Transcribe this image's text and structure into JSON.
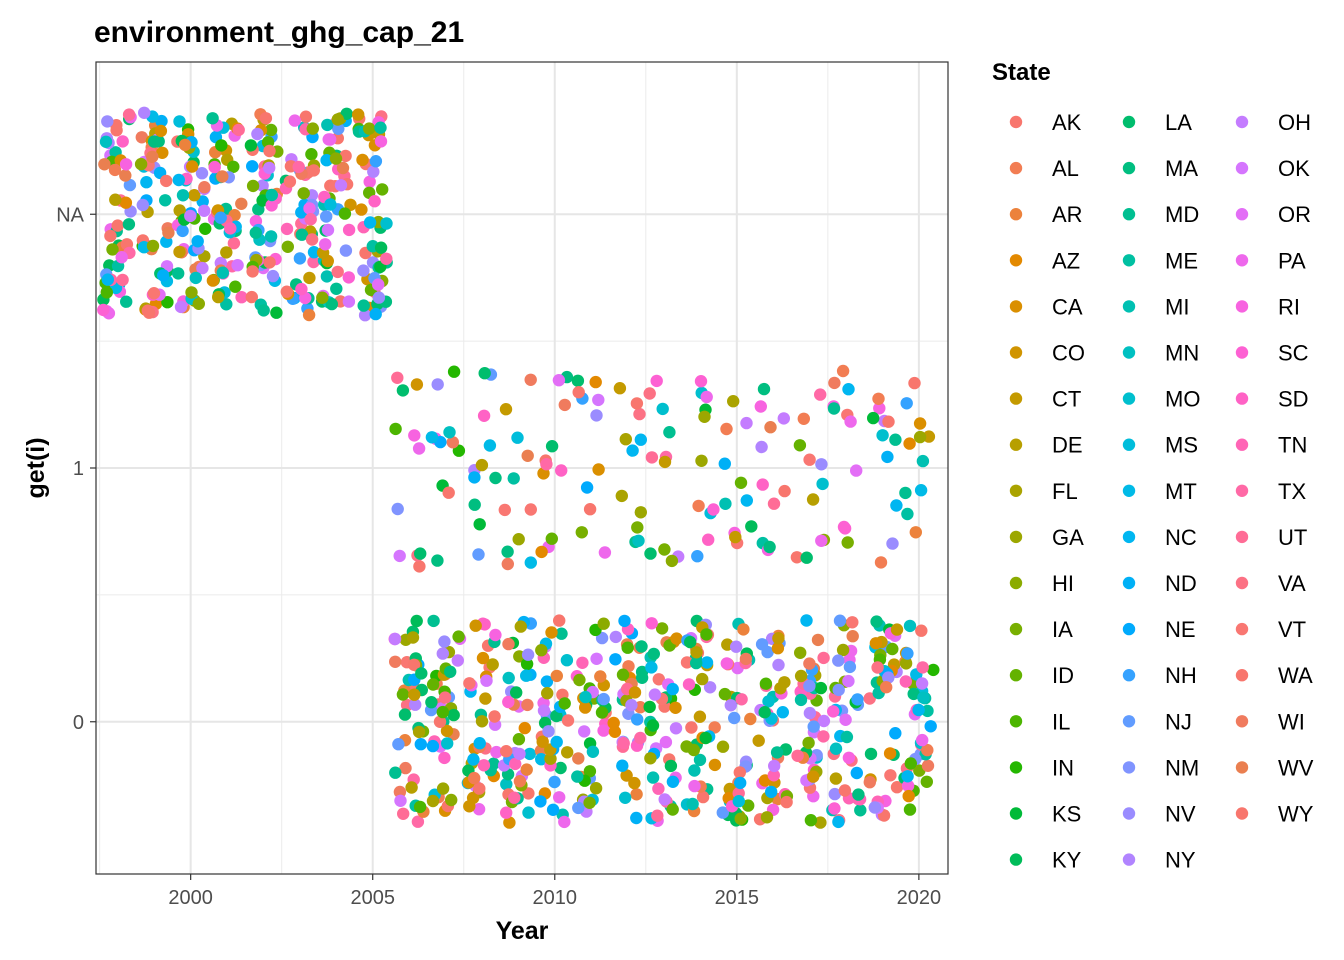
{
  "chart_data": {
    "type": "scatter",
    "title": "environment_ghg_cap_21",
    "xlabel": "Year",
    "ylabel": "get(i)",
    "xlim": [
      1997.4,
      2020.8
    ],
    "ylim": [
      -0.6,
      2.6
    ],
    "x_ticks": [
      2000,
      2005,
      2010,
      2015,
      2020
    ],
    "x_tick_labels": [
      "2000",
      "2005",
      "2010",
      "2015",
      "2020"
    ],
    "y_ticks": [
      0,
      1,
      2
    ],
    "y_tick_labels": [
      "0",
      "1",
      "NA"
    ],
    "jitter": {
      "x_width": 0.4,
      "y_height": 0.4
    },
    "grid": true,
    "legend": {
      "title": "State",
      "position": "right",
      "columns": 3
    },
    "observations": {
      "na_years": [
        1998,
        1999,
        2000,
        2001,
        2002,
        2003,
        2004,
        2005
      ],
      "valued_years": [
        2006,
        2007,
        2008,
        2009,
        2010,
        2011,
        2012,
        2013,
        2014,
        2015,
        2016,
        2017,
        2018,
        2019,
        2020
      ],
      "value_counts_per_year": {
        "0": 40,
        "1": 11,
        "NA": 51
      }
    },
    "series": [
      {
        "name": "AK",
        "color": "#F8766D"
      },
      {
        "name": "AL",
        "color": "#F27D53"
      },
      {
        "name": "AR",
        "color": "#EC823C"
      },
      {
        "name": "AZ",
        "color": "#E38900"
      },
      {
        "name": "CA",
        "color": "#DA8F00"
      },
      {
        "name": "CO",
        "color": "#D09400"
      },
      {
        "name": "CT",
        "color": "#C49A00"
      },
      {
        "name": "DE",
        "color": "#B79F00"
      },
      {
        "name": "FL",
        "color": "#AAA300"
      },
      {
        "name": "GA",
        "color": "#9CA700"
      },
      {
        "name": "HI",
        "color": "#8BAB00"
      },
      {
        "name": "IA",
        "color": "#78AF00"
      },
      {
        "name": "ID",
        "color": "#64B200"
      },
      {
        "name": "IL",
        "color": "#4CB500"
      },
      {
        "name": "IN",
        "color": "#24B700"
      },
      {
        "name": "KS",
        "color": "#00BA38"
      },
      {
        "name": "KY",
        "color": "#00BC59"
      },
      {
        "name": "LA",
        "color": "#00BD6D"
      },
      {
        "name": "MA",
        "color": "#00BE80"
      },
      {
        "name": "MD",
        "color": "#00BF91"
      },
      {
        "name": "ME",
        "color": "#00C0A2"
      },
      {
        "name": "MI",
        "color": "#00C0B2"
      },
      {
        "name": "MN",
        "color": "#00C0C1"
      },
      {
        "name": "MO",
        "color": "#00BFCE"
      },
      {
        "name": "MS",
        "color": "#00BDDB"
      },
      {
        "name": "MT",
        "color": "#00BAE7"
      },
      {
        "name": "NC",
        "color": "#00B6F1"
      },
      {
        "name": "ND",
        "color": "#00B0F6"
      },
      {
        "name": "NE",
        "color": "#00AAFD"
      },
      {
        "name": "NH",
        "color": "#35A2FF"
      },
      {
        "name": "NJ",
        "color": "#619CFF"
      },
      {
        "name": "NM",
        "color": "#8094FF"
      },
      {
        "name": "NV",
        "color": "#9A8CFF"
      },
      {
        "name": "NY",
        "color": "#B184FF"
      },
      {
        "name": "OH",
        "color": "#C47CFF"
      },
      {
        "name": "OK",
        "color": "#D575FE"
      },
      {
        "name": "OR",
        "color": "#E36EF6"
      },
      {
        "name": "PA",
        "color": "#EE68EC"
      },
      {
        "name": "RI",
        "color": "#F763E0"
      },
      {
        "name": "SC",
        "color": "#FD61D3"
      },
      {
        "name": "SD",
        "color": "#FF62C5"
      },
      {
        "name": "TN",
        "color": "#FF65B6"
      },
      {
        "name": "TX",
        "color": "#FF69A6"
      },
      {
        "name": "UT",
        "color": "#FF6C96"
      },
      {
        "name": "VA",
        "color": "#FC7184"
      },
      {
        "name": "VT",
        "color": "#F97772"
      },
      {
        "name": "WA",
        "color": "#F8766D"
      },
      {
        "name": "WI",
        "color": "#F07B5E"
      },
      {
        "name": "WV",
        "color": "#EA7F50"
      },
      {
        "name": "WY",
        "color": "#F8766D"
      },
      {
        "name": "",
        "color": "#F8766D"
      }
    ]
  }
}
